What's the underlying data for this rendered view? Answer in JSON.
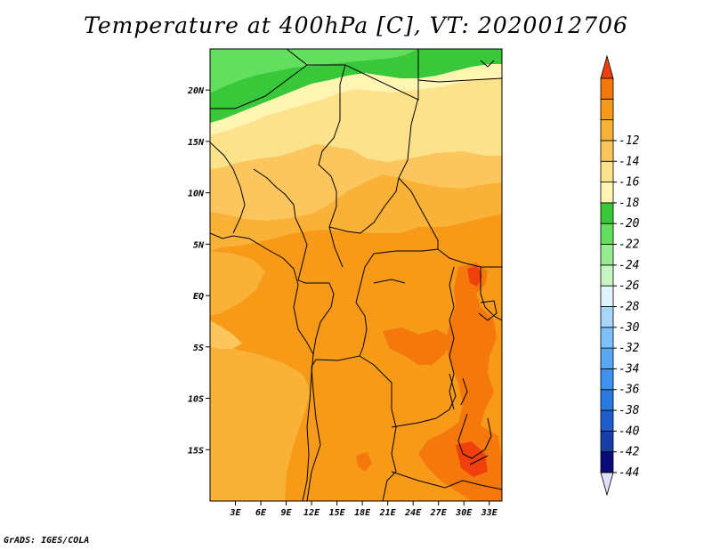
{
  "title": "Temperature at 400hPa [C], VT: 2020012706",
  "credit": "GrADS: IGES/COLA",
  "map": {
    "lon_range": [
      0,
      34.5
    ],
    "lat_range": [
      -20,
      24
    ],
    "lat_ticks": [
      {
        "value": 20,
        "label": "20N"
      },
      {
        "value": 15,
        "label": "15N"
      },
      {
        "value": 10,
        "label": "10N"
      },
      {
        "value": 5,
        "label": "5N"
      },
      {
        "value": 0,
        "label": "EQ"
      },
      {
        "value": -5,
        "label": "5S"
      },
      {
        "value": -10,
        "label": "10S"
      },
      {
        "value": -15,
        "label": "15S"
      }
    ],
    "lon_ticks": [
      {
        "value": 3,
        "label": "3E"
      },
      {
        "value": 6,
        "label": "6E"
      },
      {
        "value": 9,
        "label": "9E"
      },
      {
        "value": 12,
        "label": "12E"
      },
      {
        "value": 15,
        "label": "15E"
      },
      {
        "value": 18,
        "label": "18E"
      },
      {
        "value": 21,
        "label": "21E"
      },
      {
        "value": 24,
        "label": "24E"
      },
      {
        "value": 27,
        "label": "27E"
      },
      {
        "value": 30,
        "label": "30E"
      },
      {
        "value": 33,
        "label": "33E"
      }
    ]
  },
  "colorbar": {
    "colors": [
      "#e0e0f8",
      "#0a0a78",
      "#1a3ea8",
      "#1f5dcc",
      "#2a79e0",
      "#3c92ee",
      "#5aa8f4",
      "#7ec0f8",
      "#a8d6fa",
      "#dff4fb",
      "#c6f5c2",
      "#96ec8e",
      "#64de5e",
      "#38c83a",
      "#fff5b2",
      "#fde28c",
      "#fcc65e",
      "#f9b237",
      "#f79a17",
      "#f5780d",
      "#f0400e"
    ],
    "labels": [
      "-44",
      "-42",
      "-40",
      "-38",
      "-36",
      "-34",
      "-32",
      "-30",
      "-28",
      "-26",
      "-24",
      "-22",
      "-20",
      "-18",
      "-16",
      "-14",
      "-12"
    ]
  }
}
